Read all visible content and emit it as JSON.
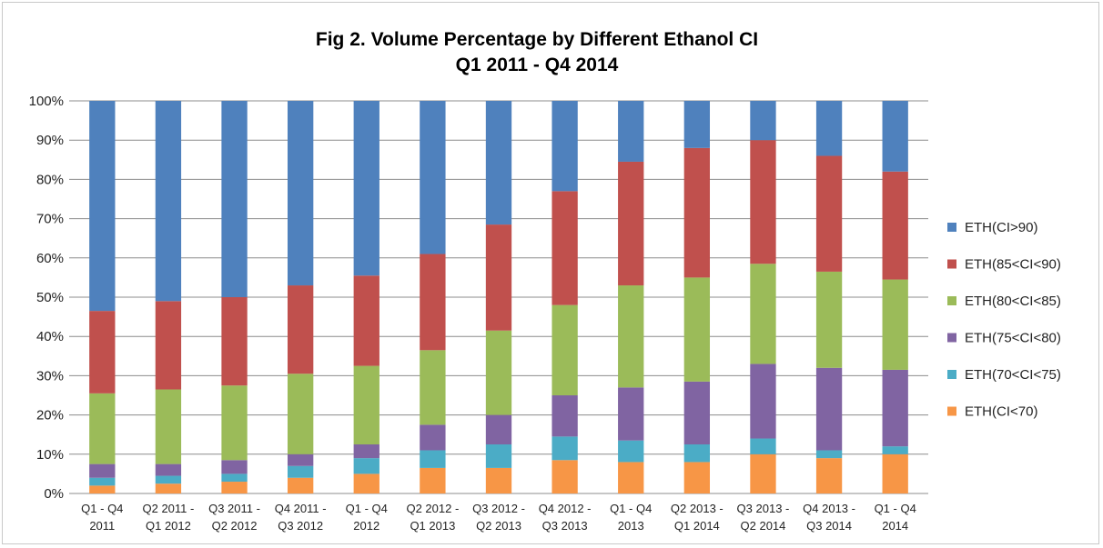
{
  "chart_data": {
    "type": "bar",
    "stacked": true,
    "normalized": true,
    "title": [
      "Fig 2. Volume Percentage by Different Ethanol CI",
      "Q1 2011 - Q4 2014"
    ],
    "xlabel": "",
    "ylabel": "",
    "ylim": [
      0,
      100
    ],
    "yticks": [
      "0%",
      "10%",
      "20%",
      "30%",
      "40%",
      "50%",
      "60%",
      "70%",
      "80%",
      "90%",
      "100%"
    ],
    "grid": true,
    "legend_position": "right",
    "categories": [
      [
        "Q1 - Q4",
        "2011"
      ],
      [
        "Q2 2011 -",
        "Q1 2012"
      ],
      [
        "Q3 2011 -",
        "Q2 2012"
      ],
      [
        "Q4 2011 -",
        "Q3 2012"
      ],
      [
        "Q1 - Q4",
        "2012"
      ],
      [
        "Q2 2012 -",
        "Q1 2013"
      ],
      [
        "Q3 2012 -",
        "Q2 2013"
      ],
      [
        "Q4 2012 -",
        "Q3 2013"
      ],
      [
        "Q1 - Q4",
        "2013"
      ],
      [
        "Q2 2013 -",
        "Q1 2014"
      ],
      [
        "Q3 2013 -",
        "Q2 2014"
      ],
      [
        "Q4 2013 -",
        "Q3 2014"
      ],
      [
        "Q1 - Q4",
        "2014"
      ]
    ],
    "series": [
      {
        "name": "ETH(CI<70)",
        "color": "#f79646",
        "values": [
          2,
          2.5,
          3,
          4,
          5,
          6.5,
          6.5,
          8.5,
          8,
          8,
          10,
          9,
          10
        ]
      },
      {
        "name": "ETH(70<CI<75)",
        "color": "#4bacc6",
        "values": [
          2,
          2,
          2,
          3,
          4,
          4.5,
          6,
          6,
          5.5,
          4.5,
          4,
          2,
          2
        ]
      },
      {
        "name": "ETH(75<CI<80)",
        "color": "#8064a2",
        "values": [
          3.5,
          3,
          3.5,
          3,
          3.5,
          6.5,
          7.5,
          10.5,
          13.5,
          16,
          19,
          21,
          19.5
        ]
      },
      {
        "name": "ETH(80<CI<85)",
        "color": "#9bbb59",
        "values": [
          18,
          19,
          19,
          20.5,
          20,
          19,
          21.5,
          23,
          26,
          26.5,
          25.5,
          24.5,
          23
        ]
      },
      {
        "name": "ETH(85<CI<90)",
        "color": "#c0504d",
        "values": [
          21,
          22.5,
          22.5,
          22.5,
          23,
          24.5,
          27,
          29,
          31.5,
          33,
          31.5,
          29.5,
          27.5
        ]
      },
      {
        "name": "ETH(CI>90)",
        "color": "#4f81bd",
        "values": [
          53.5,
          51,
          50,
          47,
          44.5,
          39,
          31.5,
          23,
          15.5,
          12,
          10,
          14,
          18
        ]
      }
    ]
  }
}
